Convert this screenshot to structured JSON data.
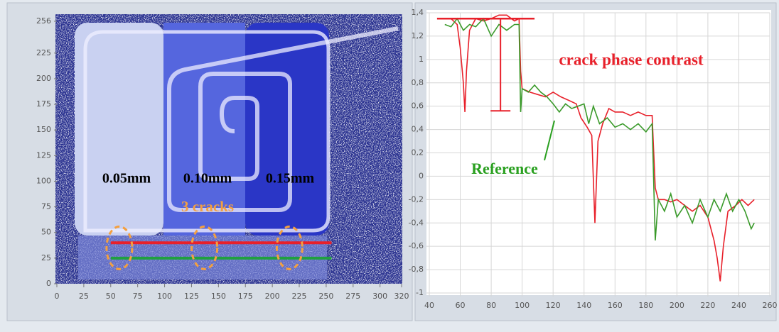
{
  "chart_data": [
    {
      "type": "image",
      "xlim": [
        0,
        320
      ],
      "ylim": [
        0,
        256
      ],
      "xticks": [
        0,
        25,
        50,
        75,
        100,
        125,
        150,
        175,
        200,
        225,
        250,
        275,
        300,
        320
      ],
      "yticks": [
        0,
        25,
        50,
        75,
        100,
        125,
        150,
        175,
        200,
        225,
        256
      ],
      "width_labels": [
        "0.05mm",
        "0.10mm",
        "0.15mm"
      ],
      "annotation": "3 cracks",
      "crack_x": [
        58,
        137,
        216
      ],
      "series": [
        {
          "color": "#e8202a",
          "x": [
            50,
            255
          ],
          "values": [
            40,
            40
          ]
        },
        {
          "color": "#20a040",
          "x": [
            50,
            255
          ],
          "values": [
            25,
            25
          ]
        }
      ]
    },
    {
      "type": "line",
      "xlim": [
        40,
        260
      ],
      "ylim": [
        -1,
        1.4
      ],
      "xticks": [
        40,
        60,
        80,
        100,
        120,
        140,
        160,
        180,
        200,
        220,
        240,
        260
      ],
      "yticks": [
        {
          "value": -1,
          "label": "-1"
        },
        {
          "value": -0.8,
          "label": "-0,8"
        },
        {
          "value": -0.6,
          "label": "-0,6"
        },
        {
          "value": -0.4,
          "label": "-0,4"
        },
        {
          "value": -0.2,
          "label": "-0,2"
        },
        0,
        {
          "value": 0.2,
          "label": "0,2"
        },
        {
          "value": 0.4,
          "label": "0,4"
        },
        {
          "value": 0.6,
          "label": "0,6"
        },
        {
          "value": 0.8,
          "label": "0,8"
        },
        1,
        {
          "value": 1.2,
          "label": "1,2"
        },
        {
          "value": 1.4,
          "label": "1,4"
        }
      ],
      "grid": true,
      "annotations": [
        "crack phase contrast",
        "Reference"
      ],
      "contrast_marker": {
        "x_from": 45,
        "x_to": 108,
        "x": 86,
        "top": 1.35,
        "bottom": 0.56
      },
      "series": [
        {
          "color": "#e8202a",
          "x": [
            50,
            54,
            58,
            60,
            62,
            63,
            64,
            66,
            70,
            75,
            80,
            85,
            90,
            95,
            98,
            99,
            100,
            105,
            110,
            115,
            120,
            125,
            130,
            135,
            138,
            142,
            145,
            147,
            149,
            152,
            156,
            160,
            165,
            170,
            175,
            180,
            184,
            186,
            188,
            192,
            196,
            200,
            205,
            210,
            215,
            220,
            224,
            226,
            228,
            230,
            233,
            238,
            242,
            246,
            250
          ],
          "values": [
            1.35,
            1.35,
            1.3,
            1.1,
            0.8,
            0.55,
            0.9,
            1.25,
            1.35,
            1.33,
            1.35,
            1.38,
            1.38,
            1.33,
            1.35,
            0.9,
            0.75,
            0.72,
            0.7,
            0.68,
            0.72,
            0.68,
            0.65,
            0.62,
            0.5,
            0.42,
            0.35,
            -0.4,
            0.3,
            0.45,
            0.58,
            0.55,
            0.55,
            0.52,
            0.55,
            0.52,
            0.52,
            -0.1,
            -0.2,
            -0.2,
            -0.22,
            -0.2,
            -0.25,
            -0.3,
            -0.25,
            -0.35,
            -0.55,
            -0.7,
            -0.9,
            -0.6,
            -0.3,
            -0.25,
            -0.2,
            -0.25,
            -0.2
          ]
        },
        {
          "color": "#3a9a2a",
          "x": [
            50,
            54,
            58,
            62,
            66,
            70,
            75,
            80,
            85,
            90,
            95,
            98,
            99,
            100,
            104,
            108,
            112,
            116,
            120,
            124,
            128,
            132,
            136,
            140,
            143,
            146,
            150,
            155,
            160,
            165,
            170,
            175,
            180,
            184,
            186,
            188,
            192,
            196,
            200,
            205,
            210,
            215,
            220,
            224,
            228,
            232,
            236,
            240,
            244,
            248,
            250
          ],
          "values": [
            1.3,
            1.28,
            1.35,
            1.25,
            1.3,
            1.28,
            1.35,
            1.2,
            1.3,
            1.25,
            1.3,
            1.3,
            0.55,
            0.75,
            0.72,
            0.78,
            0.72,
            0.68,
            0.62,
            0.55,
            0.62,
            0.58,
            0.6,
            0.62,
            0.45,
            0.6,
            0.45,
            0.5,
            0.42,
            0.45,
            0.4,
            0.45,
            0.38,
            0.45,
            -0.55,
            -0.2,
            -0.3,
            -0.15,
            -0.35,
            -0.25,
            -0.4,
            -0.2,
            -0.35,
            -0.2,
            -0.3,
            -0.15,
            -0.3,
            -0.2,
            -0.3,
            -0.45,
            -0.4
          ]
        }
      ]
    }
  ]
}
